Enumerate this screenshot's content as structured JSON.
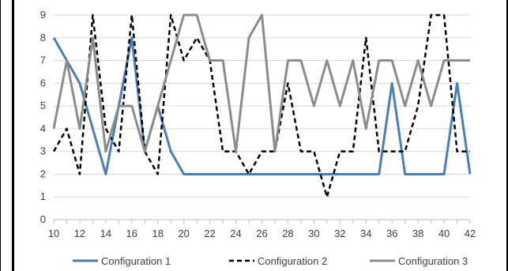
{
  "chart_data": {
    "type": "line",
    "title": "",
    "xlabel": "",
    "ylabel": "",
    "xlim": [
      10,
      42
    ],
    "ylim": [
      0,
      9
    ],
    "x": [
      10,
      11,
      12,
      13,
      14,
      15,
      16,
      17,
      18,
      19,
      20,
      21,
      22,
      23,
      24,
      25,
      26,
      27,
      28,
      29,
      30,
      31,
      32,
      33,
      34,
      35,
      36,
      37,
      38,
      39,
      40,
      41,
      42
    ],
    "x_ticks": [
      10,
      12,
      14,
      16,
      18,
      20,
      22,
      24,
      26,
      28,
      30,
      32,
      34,
      36,
      38,
      40,
      42
    ],
    "y_ticks": [
      0,
      1,
      2,
      3,
      4,
      5,
      6,
      7,
      8,
      9
    ],
    "grid": "horizontal",
    "legend_position": "bottom",
    "series": [
      {
        "name": "Configuration 1",
        "color": "#4a7ebb",
        "dash": "solid",
        "values": [
          8,
          7,
          6,
          4,
          2,
          5,
          8,
          3,
          5,
          3,
          2,
          2,
          2,
          2,
          2,
          2,
          2,
          2,
          2,
          2,
          2,
          2,
          2,
          2,
          2,
          2,
          6,
          2,
          2,
          2,
          2,
          6,
          2
        ]
      },
      {
        "name": "Configuration 2",
        "color": "#000000",
        "dash": "dashed",
        "values": [
          3,
          4,
          2,
          9,
          4,
          3,
          9,
          3,
          2,
          9,
          7,
          8,
          7,
          3,
          3,
          2,
          3,
          3,
          6,
          3,
          3,
          1,
          3,
          3,
          8,
          3,
          3,
          3,
          5,
          9,
          9,
          3,
          3
        ]
      },
      {
        "name": "Configuration 3",
        "color": "#8c8c8c",
        "dash": "solid",
        "values": [
          4,
          7,
          4,
          8,
          3,
          5,
          5,
          3,
          5,
          7,
          9,
          9,
          7,
          7,
          3,
          8,
          9,
          3,
          7,
          7,
          5,
          7,
          5,
          7,
          4,
          7,
          7,
          5,
          7,
          5,
          7,
          7,
          7
        ]
      }
    ]
  }
}
